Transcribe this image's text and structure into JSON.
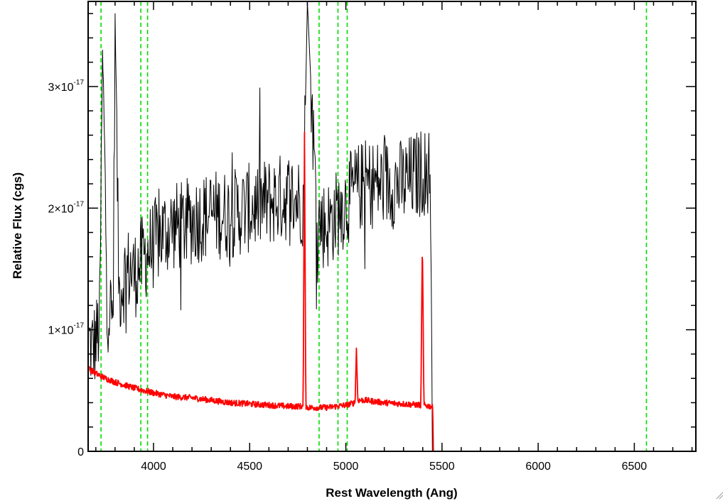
{
  "chart_data": {
    "type": "line",
    "xlabel": "Rest Wavelength (Ang)",
    "ylabel": "Relative Flux (cgs)",
    "xlim": [
      3660,
      6820
    ],
    "ylim": [
      0,
      3.7
    ],
    "y_unit_exponent": "-17",
    "x_ticks": [
      "4000",
      "4500",
      "5000",
      "5500",
      "6000",
      "6500"
    ],
    "x_tick_values": [
      4000,
      4500,
      5000,
      5500,
      6000,
      6500
    ],
    "y_ticks": [
      {
        "value": 0,
        "label": "0"
      },
      {
        "value": 1,
        "label": "1×10",
        "exp": "-17"
      },
      {
        "value": 2,
        "label": "2×10",
        "exp": "-17"
      },
      {
        "value": 3,
        "label": "3×10",
        "exp": "-17"
      }
    ],
    "reference_lines": [
      3727,
      3934,
      3969,
      4861,
      4959,
      5007,
      6563
    ],
    "reference_line_color": "#00dd00",
    "spectrum_end": 5450,
    "series": [
      {
        "color": "#000000",
        "x": [
          3665,
          3680,
          3700,
          3720,
          3735,
          3760,
          3790,
          3800,
          3820,
          3850,
          3880,
          3900,
          3950,
          4000,
          4050,
          4100,
          4150,
          4200,
          4300,
          4400,
          4500,
          4600,
          4700,
          4780,
          4800,
          4850,
          4900,
          4950,
          5000,
          5050,
          5100,
          5200,
          5300,
          5400,
          5440,
          5450
        ],
        "y": [
          0.9,
          0.85,
          0.9,
          1.05,
          3.3,
          1.2,
          1.1,
          3.6,
          1.3,
          1.45,
          1.5,
          1.45,
          1.6,
          1.7,
          1.8,
          1.85,
          1.85,
          1.9,
          1.95,
          1.95,
          2.0,
          2.05,
          2.1,
          2.05,
          3.7,
          1.9,
          1.85,
          1.95,
          2.05,
          2.15,
          2.2,
          2.2,
          2.2,
          2.3,
          2.3,
          0.0
        ]
      },
      {
        "color": "#ff0000",
        "x": [
          3665,
          3700,
          3750,
          3800,
          3900,
          4000,
          4100,
          4200,
          4300,
          4400,
          4500,
          4600,
          4700,
          4778,
          4785,
          4792,
          4800,
          4900,
          5000,
          5048,
          5055,
          5062,
          5100,
          5200,
          5300,
          5390,
          5398,
          5406,
          5440,
          5452,
          5455,
          6820
        ],
        "y": [
          0.68,
          0.64,
          0.6,
          0.57,
          0.52,
          0.48,
          0.45,
          0.44,
          0.42,
          0.4,
          0.39,
          0.38,
          0.37,
          0.37,
          2.6,
          0.37,
          0.36,
          0.36,
          0.38,
          0.4,
          0.85,
          0.42,
          0.42,
          0.4,
          0.39,
          0.38,
          1.75,
          0.38,
          0.37,
          0.36,
          0.0,
          0.0
        ]
      }
    ]
  }
}
